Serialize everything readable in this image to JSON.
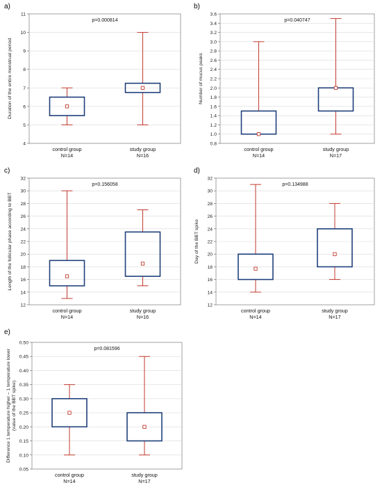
{
  "style": {
    "box_color": "#1f3f7a",
    "whisker_color": "#c0392b",
    "mean_color": "#c0392b",
    "grid_color": "#d9d9d9"
  },
  "chart_data": [
    {
      "id": "a",
      "letter": "a)",
      "type": "boxplot",
      "p_label": "p=0.000814",
      "ylabel": "Duration of the entire menstrual period",
      "ylim": [
        4,
        11
      ],
      "yticks": [
        4,
        5,
        6,
        7,
        8,
        9,
        10,
        11
      ],
      "tick_decimals": 0,
      "grid": true,
      "groups": [
        {
          "name": "control group",
          "n_label": "N=14",
          "min": 5,
          "q1": 5.5,
          "q3": 6.5,
          "max": 7,
          "center": 6
        },
        {
          "name": "study group",
          "n_label": "N=16",
          "min": 5,
          "q1": 6.75,
          "q3": 7.25,
          "max": 10,
          "center": 7
        }
      ]
    },
    {
      "id": "b",
      "letter": "b)",
      "type": "boxplot",
      "p_label": "p=0.040747",
      "ylabel": "Number of mucus peaks",
      "ylim": [
        0.8,
        3.6
      ],
      "yticks": [
        0.8,
        1.0,
        1.2,
        1.4,
        1.6,
        1.8,
        2.0,
        2.2,
        2.4,
        2.6,
        2.8,
        3.0,
        3.2,
        3.4,
        3.6
      ],
      "tick_decimals": 1,
      "grid": true,
      "groups": [
        {
          "name": "control group",
          "n_label": "N=14",
          "min": 1.0,
          "q1": 1.0,
          "q3": 1.5,
          "max": 3.0,
          "center": 1.0
        },
        {
          "name": "study group",
          "n_label": "N=17",
          "min": 1.0,
          "q1": 1.5,
          "q3": 2.0,
          "max": 3.5,
          "center": 2.0
        }
      ]
    },
    {
      "id": "c",
      "letter": "c)",
      "type": "boxplot",
      "p_label": "p=0.156058",
      "ylabel": "Length of the follicular phase according to BBT",
      "ylim": [
        12,
        32
      ],
      "yticks": [
        12,
        14,
        16,
        18,
        20,
        22,
        24,
        26,
        28,
        30,
        32
      ],
      "tick_decimals": 0,
      "grid": true,
      "groups": [
        {
          "name": "control group",
          "n_label": "N=14",
          "min": 13,
          "q1": 15,
          "q3": 19,
          "max": 30,
          "center": 16.5
        },
        {
          "name": "study group",
          "n_label": "N=16",
          "min": 15,
          "q1": 16.5,
          "q3": 23.5,
          "max": 27,
          "center": 18.5
        }
      ]
    },
    {
      "id": "d",
      "letter": "d)",
      "type": "boxplot",
      "p_label": "p=0.134988",
      "ylabel": "Day of the BBT spike",
      "ylim": [
        12,
        32
      ],
      "yticks": [
        12,
        14,
        16,
        18,
        20,
        22,
        24,
        26,
        28,
        30,
        32
      ],
      "tick_decimals": 0,
      "grid": true,
      "groups": [
        {
          "name": "control group",
          "n_label": "N=14",
          "min": 14,
          "q1": 16,
          "q3": 20,
          "max": 31,
          "center": 17.7
        },
        {
          "name": "study group",
          "n_label": "N=17",
          "min": 16,
          "q1": 18,
          "q3": 24,
          "max": 28,
          "center": 20
        }
      ]
    },
    {
      "id": "e",
      "letter": "e)",
      "type": "boxplot",
      "p_label": "p=0.081596",
      "ylabel": "Difference 1 temperature higher – 1 temperature lower",
      "ylabel2": "(value of the BBT spike)",
      "ylim": [
        0.05,
        0.5
      ],
      "yticks": [
        0.05,
        0.1,
        0.15,
        0.2,
        0.25,
        0.3,
        0.35,
        0.4,
        0.45,
        0.5
      ],
      "tick_decimals": 2,
      "grid": true,
      "groups": [
        {
          "name": "control group",
          "n_label": "N=14",
          "min": 0.1,
          "q1": 0.2,
          "q3": 0.3,
          "max": 0.35,
          "center": 0.25
        },
        {
          "name": "study group",
          "n_label": "N=17",
          "min": 0.1,
          "q1": 0.15,
          "q3": 0.25,
          "max": 0.45,
          "center": 0.2
        }
      ]
    }
  ]
}
